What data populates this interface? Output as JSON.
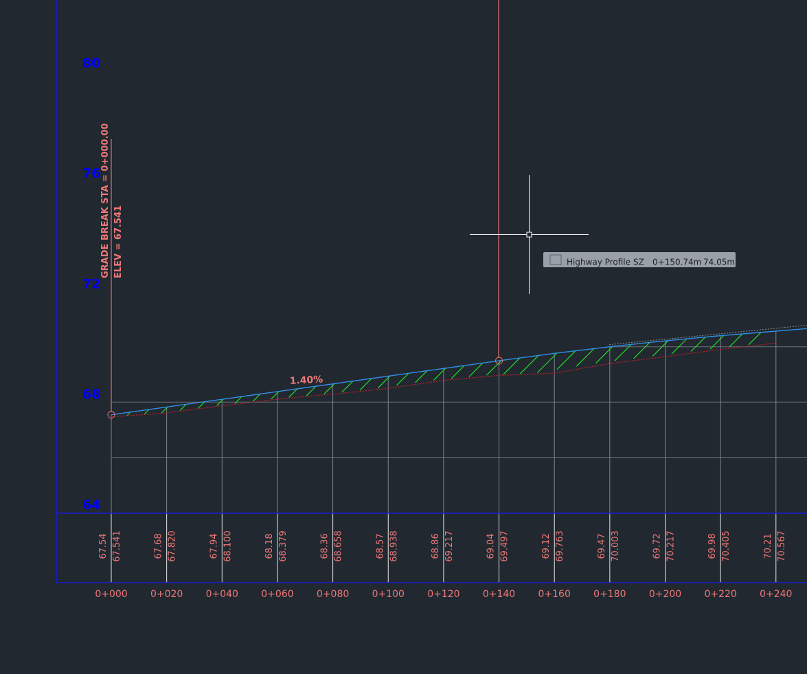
{
  "profile": {
    "elevation_labels": [
      80,
      76,
      72,
      68,
      64
    ],
    "stations": [
      "0+000",
      "0+020",
      "0+040",
      "0+060",
      "0+080",
      "0+100",
      "0+120",
      "0+140",
      "0+160",
      "0+180",
      "0+200",
      "0+220",
      "0+240"
    ],
    "ground_elevations": [
      "67.54",
      "67.68",
      "67.94",
      "68.18",
      "68.36",
      "68.57",
      "68.86",
      "69.04",
      "69.12",
      "69.47",
      "69.72",
      "69.98",
      "70.21"
    ],
    "design_elevations": [
      "67.541",
      "67.820",
      "68.100",
      "68.379",
      "68.658",
      "68.938",
      "69.217",
      "69.497",
      "69.763",
      "70.003",
      "70.217",
      "70.405",
      "70.567"
    ],
    "grade_label": "1.40%",
    "grade_break": {
      "station_text": "GRADE BREAK STA = 0+000.00",
      "elevation_text": "ELEV =  67.541"
    }
  },
  "tooltip": {
    "title": "Highway Profile",
    "mode": "SZ",
    "station": "0+150.74m",
    "elevation": "74.05m"
  }
}
